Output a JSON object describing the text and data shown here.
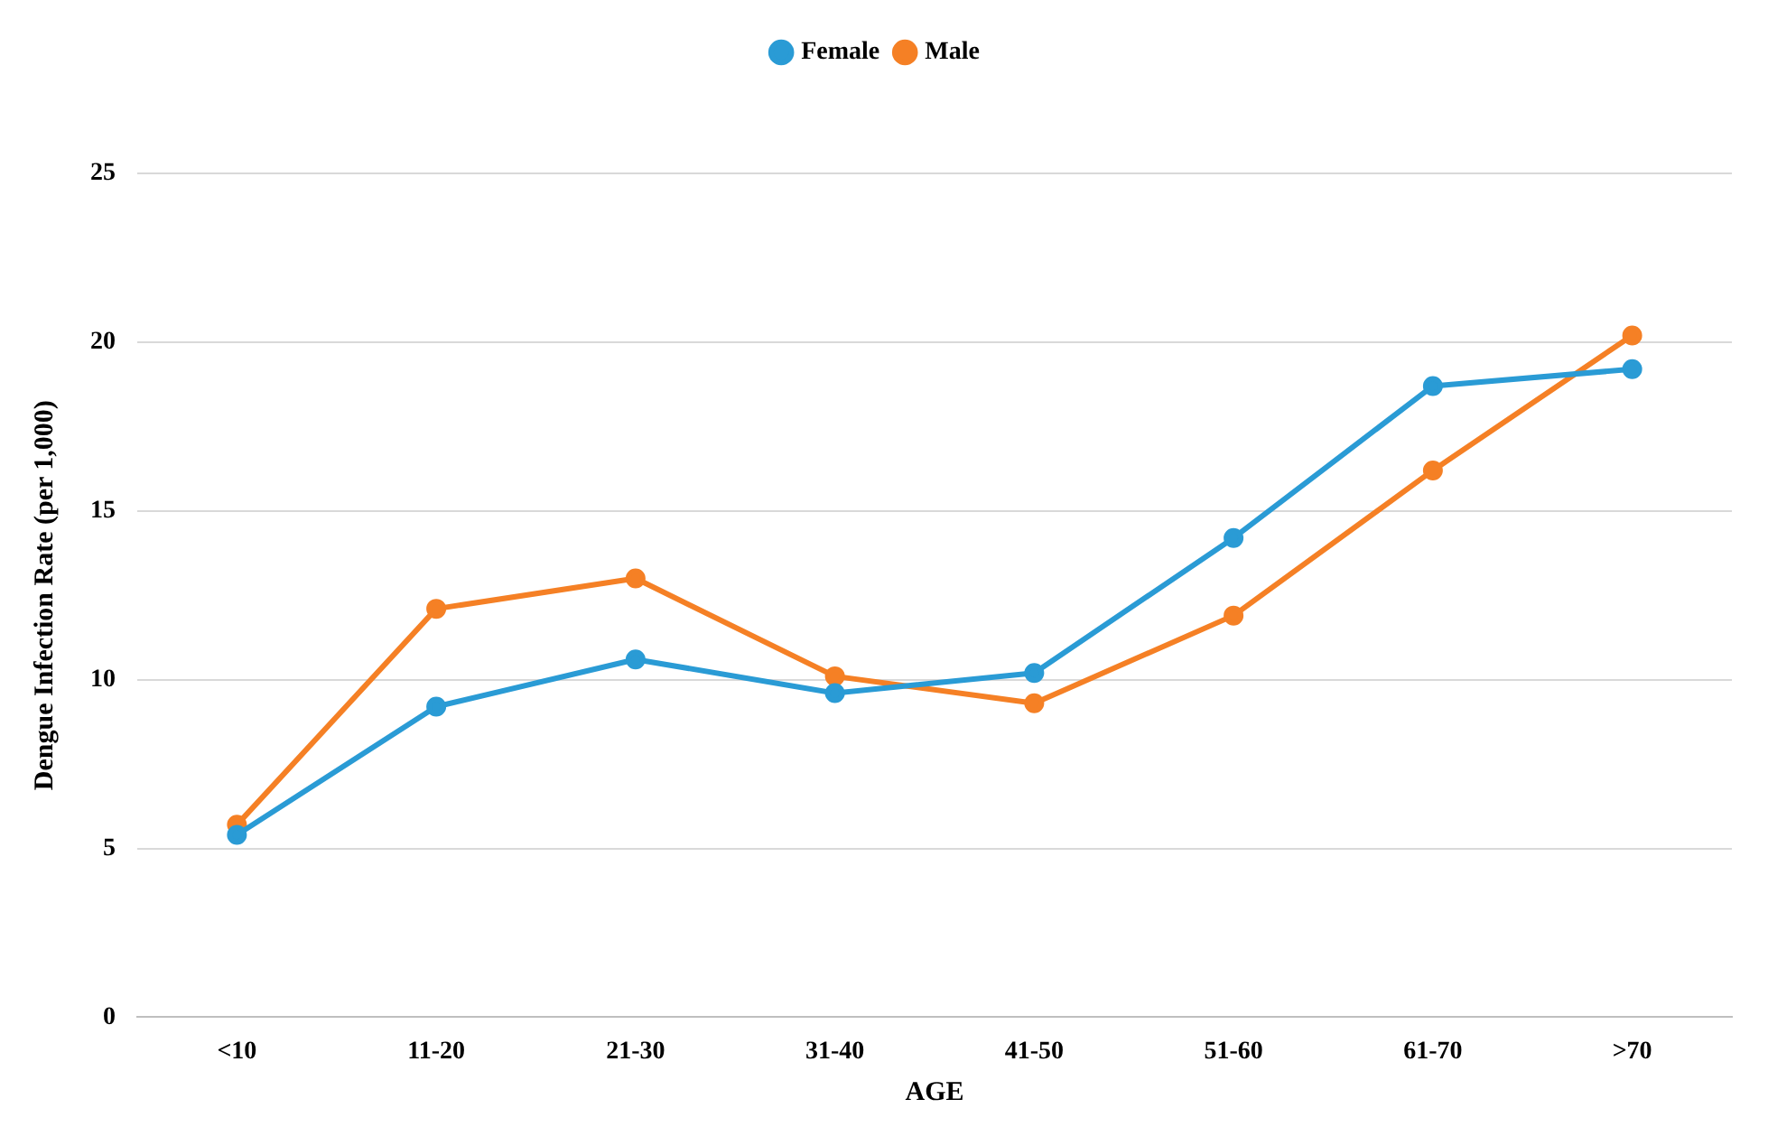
{
  "chart_data": {
    "type": "line",
    "xlabel": "AGE",
    "ylabel": "Dengue Infection Rate (per 1,000)",
    "categories": [
      "<10",
      "11-20",
      "21-30",
      "31-40",
      "41-50",
      "51-60",
      "61-70",
      ">70"
    ],
    "series": [
      {
        "name": "Female",
        "color": "#2a9bd5",
        "values": [
          5.4,
          9.2,
          10.6,
          9.6,
          10.2,
          14.2,
          18.7,
          19.2
        ]
      },
      {
        "name": "Male",
        "color": "#f58025",
        "values": [
          5.7,
          12.1,
          13.0,
          10.1,
          9.3,
          11.9,
          16.2,
          20.2
        ]
      }
    ],
    "ylim": [
      0,
      25
    ],
    "yticks": [
      0,
      5,
      10,
      15,
      20,
      25
    ],
    "grid": "y",
    "legend": "top",
    "marker": "circle",
    "line_style": "solid"
  }
}
